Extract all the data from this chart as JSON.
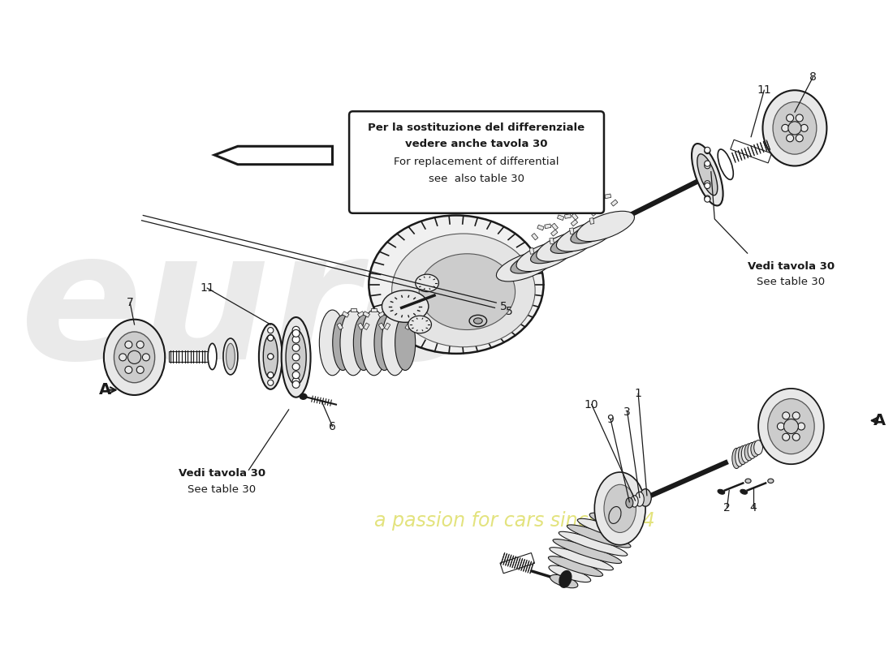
{
  "bg": "#ffffff",
  "dc": "#1a1a1a",
  "mc": "#555555",
  "lf": "#e8e8e8",
  "mf": "#cccccc",
  "df": "#aaaaaa",
  "wm_color": "#e8e8e8",
  "wm_text_color": "#e0e070",
  "note_lines": [
    "Per la sostituzione del differenziale",
    "vedere anche tavola 30",
    "For replacement of differential",
    "see  also table 30"
  ],
  "vedi_left": [
    "Vedi tavola 30",
    "See table 30"
  ],
  "vedi_right": [
    "Vedi tavola 30",
    "See table 30"
  ]
}
